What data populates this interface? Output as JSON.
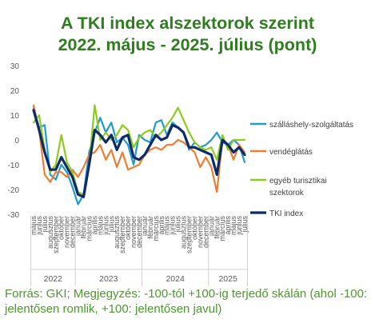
{
  "title_line1": "A TKI index alszektorok szerint",
  "title_line2": "2022. május - 2025. július (pont)",
  "source": "Forrás: GKI; Megjegyzés: -100-tól +100-ig terjedő skálán (ahol -100: jelentősen romlik, +100: jelentősen javul)",
  "chart_data": {
    "type": "line",
    "ylim": [
      -30,
      30
    ],
    "yticks": [
      30,
      20,
      10,
      0,
      -10,
      -20,
      -30
    ],
    "grid": false,
    "legend_position": "right",
    "x": [
      "május",
      "június",
      "július",
      "augusztus",
      "szeptember",
      "október",
      "november",
      "december",
      "január",
      "február",
      "március",
      "április",
      "május",
      "június",
      "július",
      "augusztus",
      "szeptember",
      "október",
      "november",
      "december",
      "január",
      "február",
      "március",
      "április",
      "május",
      "június",
      "július",
      "augusztus",
      "szeptember",
      "október",
      "november",
      "december",
      "január",
      "február",
      "március",
      "április",
      "május",
      "június",
      "július"
    ],
    "year_groups": [
      {
        "label": "2022",
        "start": 0,
        "end": 7
      },
      {
        "label": "2023",
        "start": 8,
        "end": 19
      },
      {
        "label": "2024",
        "start": 20,
        "end": 31
      },
      {
        "label": "2025",
        "start": 32,
        "end": 38
      }
    ],
    "series": [
      {
        "name": "szálláshely-szolgáltatás",
        "color": "#1f9bcf",
        "values": [
          13,
          5,
          6,
          -14,
          -16,
          -10,
          -13,
          -19,
          -26,
          -22,
          -5,
          3,
          9,
          3,
          7,
          -1,
          1,
          -2,
          -10,
          2,
          0,
          -1,
          7,
          8,
          2,
          7,
          5,
          3,
          -4,
          -1,
          -3,
          -2,
          0,
          3,
          -1,
          -2,
          0,
          -2,
          -9
        ]
      },
      {
        "name": "vendéglátás",
        "color": "#ef7d31",
        "values": [
          14,
          4,
          -14,
          -17,
          -13,
          -13,
          -15,
          -12,
          -15,
          -11,
          -6,
          -5,
          -2,
          -8,
          -4,
          -11,
          -5,
          -12,
          -11,
          -10,
          -6,
          -4,
          -3,
          -4,
          -2,
          -2,
          0,
          -1,
          -3,
          -5,
          -11,
          -7,
          -11,
          -21,
          0,
          -2,
          -8,
          -2,
          -5
        ]
      },
      {
        "name": "egyéb turisztikai szektorok",
        "color": "#8ccc1c",
        "values": [
          7,
          10,
          -4,
          -13,
          -10,
          2,
          -9,
          -13,
          -21,
          -22,
          -10,
          14,
          0,
          3,
          0,
          2,
          6,
          4,
          -3,
          1,
          3,
          4,
          1,
          3,
          6,
          9,
          13,
          8,
          3,
          -1,
          -3,
          -4,
          -3,
          -8,
          2,
          -4,
          0,
          0,
          0
        ]
      },
      {
        "name": "TKI index",
        "color": "#0d2a6b",
        "values": [
          12,
          4,
          -5,
          -12,
          -12,
          -7,
          -11,
          -15,
          -22,
          -23,
          -10,
          4,
          2,
          -1,
          2,
          -4,
          1,
          2,
          -7,
          -8,
          -6,
          -2,
          2,
          0,
          1,
          6,
          5,
          3,
          -3,
          -3,
          -4,
          -5,
          -6,
          -14,
          0,
          -2,
          -5,
          -3,
          -6
        ]
      }
    ]
  }
}
